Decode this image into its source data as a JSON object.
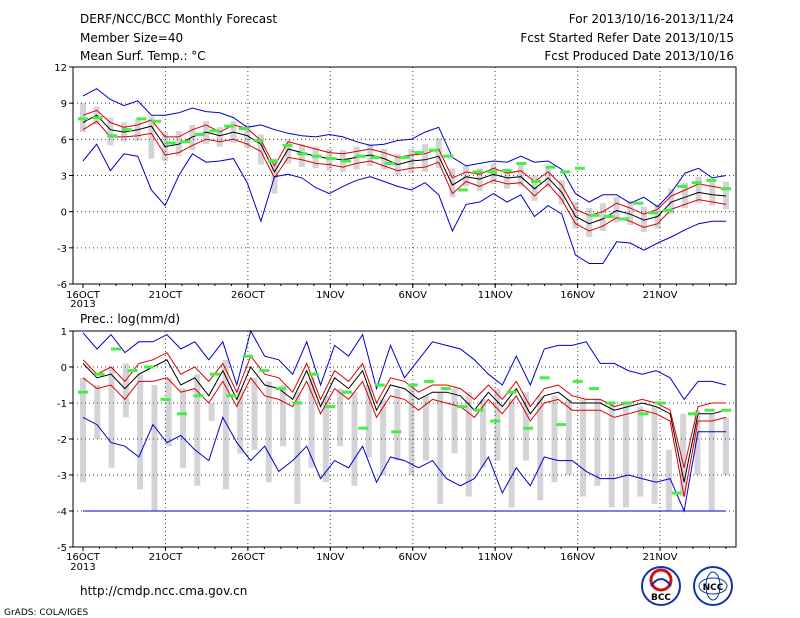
{
  "header": {
    "left": [
      "DERF/NCC/BCC Monthly Forecast",
      "Member Size=40",
      "Mean Surf. Temp.: °C"
    ],
    "right": [
      "For 2013/10/16-2013/11/24",
      "Fcst Started Refer Date 2013/10/15",
      "Fcst Produced Date 2013/10/16"
    ]
  },
  "footer": {
    "url": "http://cmdp.ncc.cma.gov.cn",
    "credit": "GrADS: COLA/IGES",
    "logo1": "BCC",
    "logo2": "NCC"
  },
  "colors": {
    "max_min": "#0000cc",
    "spread": "#dd0000",
    "mean": "#000000",
    "obs": "#44ee44",
    "box": "#d4d4d8"
  },
  "chart_data": [
    {
      "type": "line",
      "title": "Mean Surf. Temp.: °C",
      "ylim": [
        -6,
        12
      ],
      "yticks": [
        "12",
        "9",
        "6",
        "3",
        "0",
        "-3",
        "-6"
      ],
      "xticks": [
        "16OCT",
        "21OCT",
        "26OCT",
        "1NOV",
        "6NOV",
        "11NOV",
        "16NOV",
        "21NOV"
      ],
      "xsub": "2013",
      "days": 40,
      "series": [
        {
          "key": "max",
          "values": [
            9.6,
            10.2,
            9.3,
            8.8,
            9.2,
            8.0,
            8.0,
            8.2,
            8.6,
            8.3,
            8.2,
            7.8,
            7.0,
            7.2,
            6.8,
            6.5,
            6.3,
            6.2,
            6.4,
            6.2,
            5.8,
            5.5,
            5.6,
            5.9,
            6.0,
            6.6,
            7.0,
            4.5,
            3.8,
            4.0,
            4.2,
            4.1,
            4.6,
            4.1,
            4.2,
            3.5,
            1.5,
            0.8,
            1.4,
            1.4,
            0.7,
            1.2,
            0.4,
            1.6,
            3.2,
            3.6,
            2.8,
            3.0
          ]
        },
        {
          "key": "sd_hi",
          "values": [
            8.0,
            8.4,
            7.4,
            7.0,
            7.2,
            7.6,
            6.2,
            6.2,
            6.8,
            7.2,
            6.6,
            7.2,
            6.9,
            5.9,
            3.8,
            5.8,
            5.5,
            5.2,
            4.9,
            4.8,
            5.0,
            5.2,
            4.9,
            4.5,
            4.7,
            4.8,
            5.2,
            2.8,
            3.3,
            3.1,
            3.6,
            3.2,
            3.4,
            2.5,
            3.3,
            2.2,
            0.2,
            -0.3,
            0.0,
            0.7,
            0.3,
            -0.2,
            0.2,
            1.3,
            1.8,
            2.3,
            2.1,
            1.9
          ]
        },
        {
          "key": "mean",
          "values": [
            7.4,
            8.0,
            6.8,
            6.6,
            6.8,
            7.1,
            5.4,
            5.6,
            6.2,
            6.6,
            6.3,
            6.6,
            6.3,
            5.6,
            3.3,
            5.2,
            4.9,
            4.6,
            4.4,
            4.3,
            4.5,
            4.7,
            4.4,
            3.9,
            4.2,
            4.3,
            4.6,
            2.2,
            2.9,
            2.7,
            3.1,
            2.8,
            2.9,
            1.9,
            2.8,
            1.6,
            -0.4,
            -1.0,
            -0.6,
            0.1,
            -0.2,
            -0.7,
            -0.4,
            0.8,
            1.2,
            1.6,
            1.4,
            1.3
          ]
        },
        {
          "key": "sd_lo",
          "values": [
            6.8,
            7.5,
            6.2,
            6.2,
            6.3,
            6.5,
            4.7,
            4.9,
            5.5,
            6.0,
            5.8,
            6.0,
            5.6,
            5.0,
            2.8,
            4.5,
            4.3,
            4.0,
            3.9,
            3.7,
            4.0,
            4.2,
            3.8,
            3.4,
            3.6,
            3.7,
            4.1,
            1.5,
            2.5,
            2.1,
            2.6,
            2.3,
            2.4,
            1.3,
            2.3,
            1.0,
            -1.0,
            -1.6,
            -1.2,
            -0.5,
            -0.8,
            -1.3,
            -1.0,
            0.2,
            0.6,
            1.0,
            0.8,
            0.6
          ]
        },
        {
          "key": "min",
          "values": [
            4.2,
            5.6,
            3.4,
            4.8,
            4.6,
            1.8,
            0.5,
            3.0,
            4.8,
            4.1,
            4.2,
            4.4,
            2.4,
            -0.8,
            2.9,
            3.1,
            2.8,
            2.0,
            1.5,
            2.1,
            2.6,
            2.9,
            2.5,
            2.1,
            1.8,
            2.4,
            1.4,
            -1.6,
            0.6,
            0.8,
            1.5,
            0.8,
            1.4,
            -0.4,
            0.5,
            -0.2,
            -3.6,
            -4.3,
            -4.3,
            -2.5,
            -2.6,
            -3.2,
            -2.6,
            -2.1,
            -1.5,
            -1.0,
            -0.8,
            -0.8
          ]
        },
        {
          "key": "obs",
          "values": [
            7.7,
            7.8,
            6.3,
            6.8,
            7.7,
            7.5,
            5.7,
            5.8,
            6.4,
            6.7,
            7.1,
            6.9,
            5.9,
            4.2,
            5.5,
            4.8,
            4.6,
            4.4,
            4.2,
            4.6,
            4.5,
            4.0,
            4.5,
            4.9,
            5.1,
            4.6,
            1.8,
            3.3,
            3.3,
            3.4,
            4.0,
            2.5,
            3.7,
            3.3,
            3.6,
            -0.3,
            -0.4,
            -0.6,
            0.7,
            -0.1,
            0.1,
            2.1,
            2.4,
            2.6,
            1.9
          ]
        }
      ],
      "boxes": [
        [
          6.6,
          9.0
        ],
        [
          7.2,
          8.7
        ],
        [
          5.5,
          7.8
        ],
        [
          5.8,
          7.4
        ],
        [
          5.9,
          7.6
        ],
        [
          4.4,
          7.9
        ],
        [
          4.2,
          6.6
        ],
        [
          4.6,
          6.7
        ],
        [
          5.1,
          7.2
        ],
        [
          5.6,
          7.5
        ],
        [
          5.4,
          7.0
        ],
        [
          5.7,
          7.5
        ],
        [
          5.3,
          7.2
        ],
        [
          3.9,
          6.4
        ],
        [
          1.5,
          4.4
        ],
        [
          4.0,
          6.0
        ],
        [
          3.7,
          5.6
        ],
        [
          3.6,
          5.4
        ],
        [
          3.4,
          5.2
        ],
        [
          3.3,
          5.1
        ],
        [
          3.5,
          5.4
        ],
        [
          3.8,
          5.6
        ],
        [
          3.5,
          5.2
        ],
        [
          3.0,
          4.8
        ],
        [
          3.2,
          5.2
        ],
        [
          3.3,
          5.6
        ],
        [
          3.6,
          6.1
        ],
        [
          1.2,
          3.6
        ],
        [
          2.1,
          3.8
        ],
        [
          1.7,
          3.6
        ],
        [
          2.3,
          4.0
        ],
        [
          1.9,
          3.6
        ],
        [
          2.1,
          4.0
        ],
        [
          0.9,
          3.0
        ],
        [
          2.0,
          3.7
        ],
        [
          0.6,
          2.6
        ],
        [
          -1.4,
          0.8
        ],
        [
          -2.1,
          0.3
        ],
        [
          -1.6,
          0.7
        ],
        [
          -0.9,
          1.2
        ],
        [
          -1.1,
          0.9
        ],
        [
          -1.7,
          0.4
        ],
        [
          -1.4,
          0.6
        ],
        [
          -0.2,
          1.9
        ],
        [
          0.3,
          2.4
        ],
        [
          0.7,
          2.9
        ],
        [
          0.5,
          2.6
        ],
        [
          0.2,
          2.5
        ]
      ]
    },
    {
      "type": "line",
      "title": "Prec.: log(mm/d)",
      "ylim": [
        -5,
        1
      ],
      "yticks": [
        "1",
        "0",
        "-1",
        "-2",
        "-3",
        "-4",
        "-5"
      ],
      "xticks": [
        "16OCT",
        "21OCT",
        "26OCT",
        "1NOV",
        "6NOV",
        "11NOV",
        "16NOV",
        "21NOV"
      ],
      "xsub": "2013",
      "days": 40,
      "series": [
        {
          "key": "max",
          "values": [
            0.95,
            0.5,
            0.9,
            0.4,
            0.7,
            0.7,
            0.9,
            0.5,
            0.7,
            0.2,
            0.7,
            -0.5,
            1.0,
            0.3,
            0.2,
            -0.2,
            0.7,
            -0.5,
            0.6,
            0.3,
            0.9,
            -0.6,
            0.6,
            -0.3,
            0.2,
            0.7,
            0.6,
            0.5,
            0.2,
            -0.2,
            -0.5,
            0.3,
            -0.5,
            0.5,
            0.6,
            0.6,
            0.7,
            0.1,
            0.1,
            -0.1,
            -0.2,
            -0.1,
            -0.3,
            -0.9,
            -0.4,
            -0.4,
            -0.5
          ]
        },
        {
          "key": "sd_hi",
          "values": [
            0.2,
            -0.2,
            0.0,
            -0.4,
            0.1,
            0.2,
            0.4,
            -0.2,
            0.0,
            -0.4,
            0.1,
            -0.7,
            0.3,
            -0.2,
            -0.3,
            -0.7,
            0.1,
            -0.9,
            -0.1,
            -0.4,
            0.1,
            -1.0,
            -0.3,
            -0.4,
            -0.7,
            -0.5,
            -0.5,
            -0.6,
            -0.9,
            -0.5,
            -0.9,
            -0.4,
            -1.1,
            -0.6,
            -0.5,
            -0.8,
            -0.9,
            -0.9,
            -1.1,
            -1.0,
            -0.9,
            -1.0,
            -1.2,
            -2.8,
            -1.1,
            -1.0,
            -1.0
          ]
        },
        {
          "key": "mean",
          "values": [
            0.1,
            -0.3,
            -0.2,
            -0.6,
            -0.2,
            0.0,
            0.2,
            -0.5,
            -0.3,
            -0.8,
            -0.1,
            -0.9,
            0.0,
            -0.5,
            -0.6,
            -0.9,
            -0.1,
            -1.1,
            -0.3,
            -0.6,
            -0.1,
            -1.2,
            -0.5,
            -0.6,
            -0.9,
            -0.7,
            -0.7,
            -0.8,
            -1.2,
            -0.7,
            -1.1,
            -0.6,
            -1.3,
            -0.8,
            -0.7,
            -1.0,
            -1.0,
            -1.0,
            -1.2,
            -1.1,
            -1.0,
            -1.1,
            -1.3,
            -3.2,
            -1.3,
            -1.3,
            -1.2
          ]
        },
        {
          "key": "sd_lo",
          "values": [
            -0.3,
            -0.6,
            -0.5,
            -0.9,
            -0.4,
            -0.4,
            -0.3,
            -0.7,
            -0.6,
            -1.0,
            -0.4,
            -1.1,
            -0.3,
            -0.8,
            -0.9,
            -1.1,
            -0.4,
            -1.3,
            -0.6,
            -0.9,
            -0.4,
            -1.4,
            -0.8,
            -0.9,
            -1.2,
            -0.9,
            -1.0,
            -1.1,
            -1.4,
            -0.9,
            -1.3,
            -0.8,
            -1.5,
            -1.0,
            -0.9,
            -1.2,
            -1.2,
            -1.2,
            -1.4,
            -1.3,
            -1.2,
            -1.3,
            -1.5,
            -3.6,
            -1.5,
            -1.5,
            -1.4
          ]
        },
        {
          "key": "min",
          "values": [
            -1.4,
            -1.6,
            -2.1,
            -2.2,
            -2.5,
            -1.6,
            -2.1,
            -1.9,
            -2.3,
            -2.6,
            -1.4,
            -2.1,
            -2.6,
            -2.2,
            -2.9,
            -2.6,
            -2.2,
            -3.1,
            -2.6,
            -2.8,
            -2.2,
            -3.2,
            -2.5,
            -2.6,
            -2.8,
            -2.6,
            -3.1,
            -3.3,
            -3.1,
            -2.5,
            -3.5,
            -2.8,
            -3.3,
            -2.5,
            -2.6,
            -2.6,
            -2.9,
            -3.1,
            -3.1,
            -3.0,
            -3.1,
            -3.2,
            -3.1,
            -4.0,
            -1.8,
            -1.8,
            -1.8
          ]
        },
        {
          "key": "bottom",
          "values": [
            -4.0,
            -4.0
          ]
        },
        {
          "key": "obs",
          "values": [
            -0.7,
            -0.2,
            0.5,
            -0.1,
            0.0,
            -0.9,
            -1.3,
            -0.8,
            -0.2,
            -0.8,
            0.3,
            -0.1,
            -0.6,
            -1.0,
            -0.2,
            -1.1,
            -0.7,
            -1.7,
            -0.5,
            -1.8,
            -0.5,
            -0.4,
            -0.6,
            -1.1,
            -1.2,
            -1.5,
            -0.7,
            -1.7,
            -0.3,
            -1.6,
            -0.4,
            -0.6,
            -1.0,
            -1.0,
            -1.3,
            -1.0,
            -3.5,
            -1.3,
            -1.2,
            -1.2
          ]
        }
      ],
      "boxes": [
        [
          -3.2,
          -0.3
        ],
        [
          -2.0,
          -0.5
        ],
        [
          -2.8,
          0.0
        ],
        [
          -1.4,
          0.1
        ],
        [
          -3.4,
          -0.2
        ],
        [
          -4.0,
          -0.5
        ],
        [
          -2.2,
          -0.3
        ],
        [
          -2.8,
          -0.6
        ],
        [
          -3.3,
          -0.2
        ],
        [
          -1.5,
          -1.0
        ],
        [
          -3.4,
          0.2
        ],
        [
          -2.4,
          -0.6
        ],
        [
          -2.3,
          -0.3
        ],
        [
          -3.2,
          -0.4
        ],
        [
          -2.2,
          -0.5
        ],
        [
          -3.8,
          -0.7
        ],
        [
          -2.8,
          -0.3
        ],
        [
          -3.2,
          -0.8
        ],
        [
          -2.2,
          -0.6
        ],
        [
          -3.3,
          -0.7
        ],
        [
          -2.5,
          -0.5
        ],
        [
          -3.0,
          -0.9
        ],
        [
          -2.6,
          -0.6
        ],
        [
          -3.0,
          -0.5
        ],
        [
          -2.6,
          -0.8
        ],
        [
          -3.8,
          -0.7
        ],
        [
          -2.4,
          -0.6
        ],
        [
          -3.6,
          -0.7
        ],
        [
          -2.8,
          -0.9
        ],
        [
          -2.6,
          -0.6
        ],
        [
          -3.9,
          -0.9
        ],
        [
          -2.6,
          -0.7
        ],
        [
          -3.7,
          -0.8
        ],
        [
          -3.2,
          -0.8
        ],
        [
          -3.0,
          -0.9
        ],
        [
          -3.6,
          -0.9
        ],
        [
          -3.3,
          -0.9
        ],
        [
          -3.9,
          -1.0
        ],
        [
          -3.9,
          -1.0
        ],
        [
          -3.6,
          -1.1
        ],
        [
          -3.8,
          -1.1
        ],
        [
          -4.0,
          -2.3
        ],
        [
          -3.6,
          -1.3
        ],
        [
          -3.0,
          -1.2
        ],
        [
          -4.0,
          -1.3
        ],
        [
          -3.0,
          -1.4
        ]
      ]
    }
  ]
}
